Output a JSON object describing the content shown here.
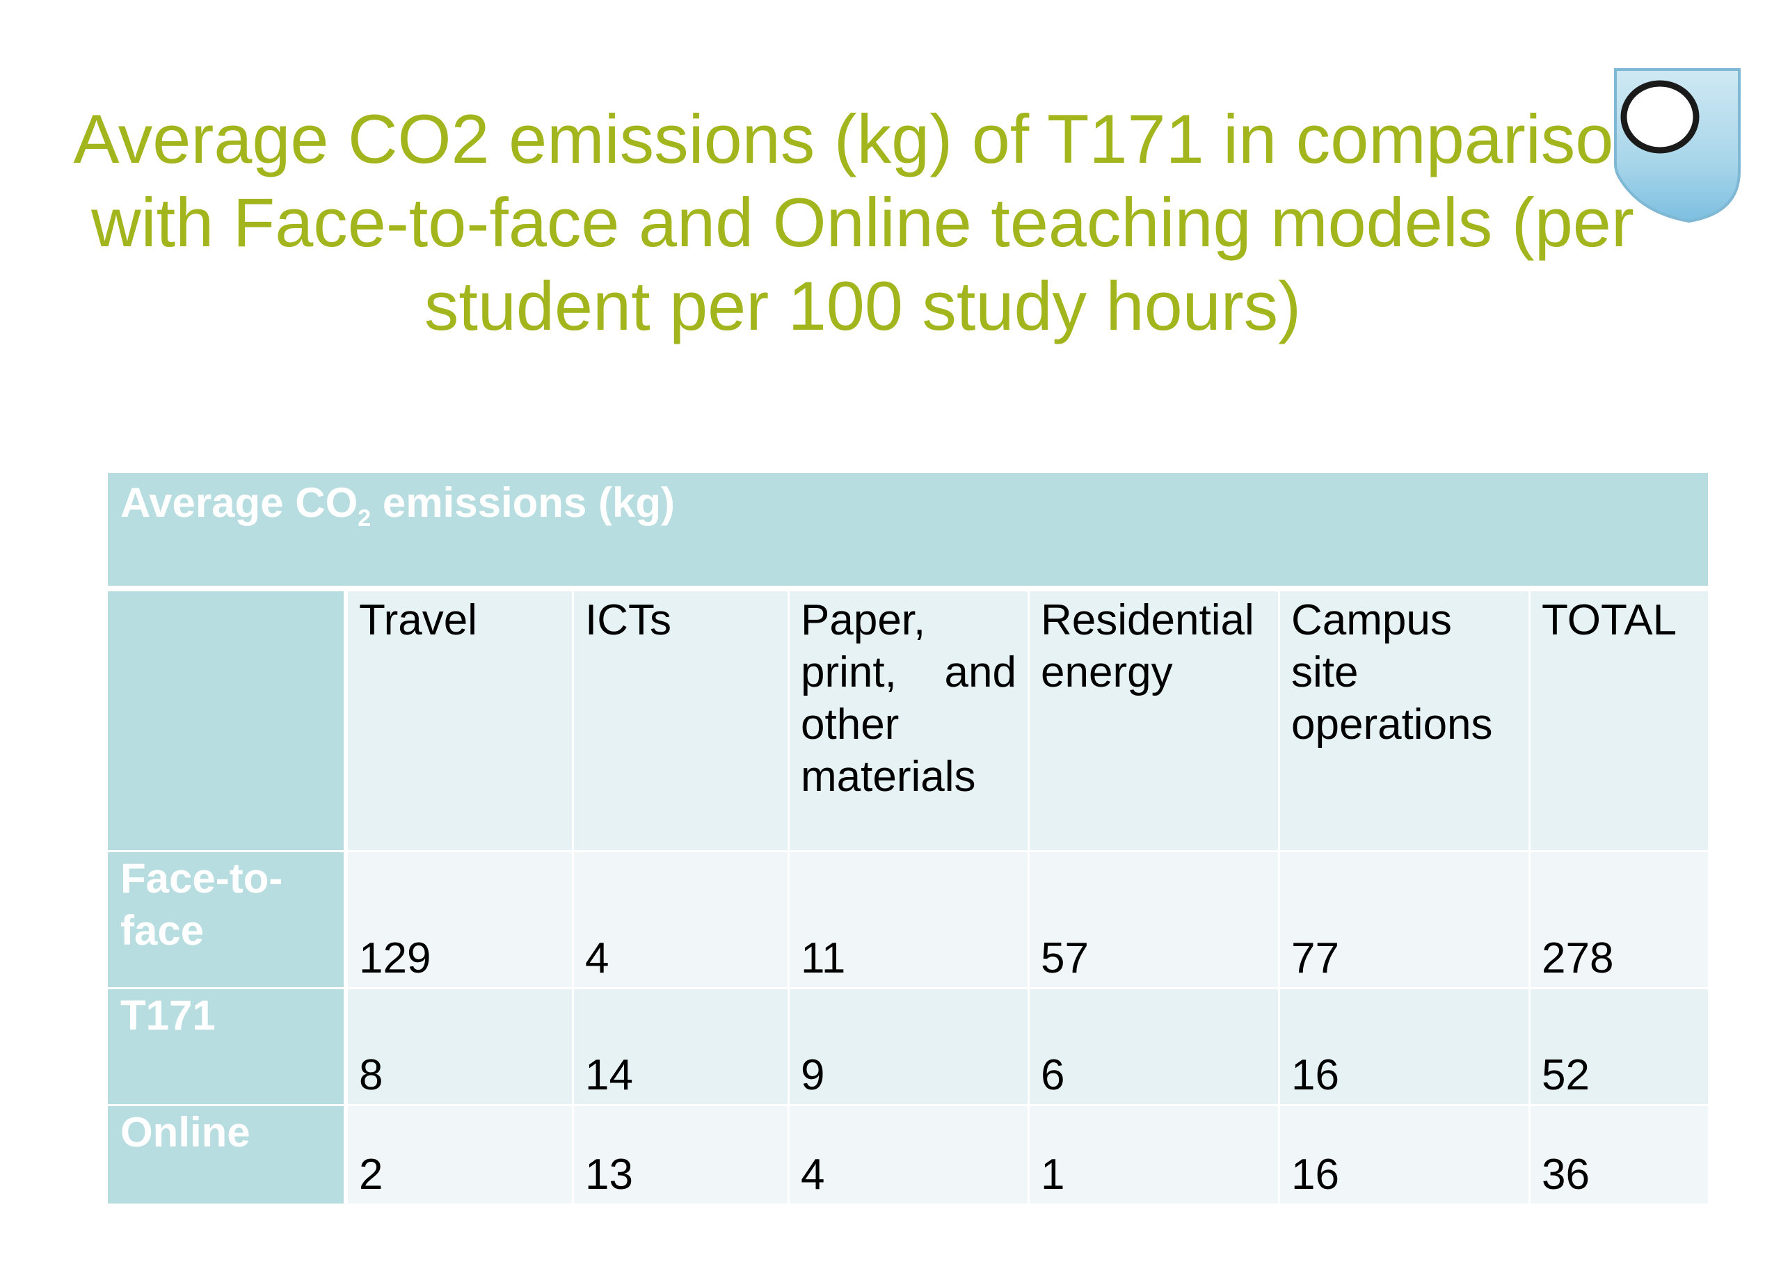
{
  "slide": {
    "title": "Average CO2 emissions (kg) of T171 in comparison with Face-to-face and Online teaching models (per student per 100 study hours)"
  },
  "table": {
    "header_prefix": "Average CO",
    "header_sub": "2",
    "header_suffix": " emissions (kg)",
    "columns": [
      "Travel",
      "ICTs",
      "Paper, print, and other materials",
      "Residential energy",
      "Campus site operations",
      "TOTAL"
    ],
    "rows": [
      {
        "label": "Face-to-face",
        "values": [
          "129",
          "4",
          "11",
          "57",
          "77",
          "278"
        ]
      },
      {
        "label": "T171",
        "values": [
          "8",
          "14",
          "9",
          "6",
          "16",
          "52"
        ]
      },
      {
        "label": "Online",
        "values": [
          "2",
          "13",
          "4",
          "1",
          "16",
          "36"
        ]
      }
    ]
  },
  "colors": {
    "title": "#a2b51c",
    "table_header": "#b7dde0",
    "row_light": "#f1f7f8",
    "row_mid": "#e6f2f4"
  },
  "logo": {
    "icon": "open-university-shield-icon"
  }
}
